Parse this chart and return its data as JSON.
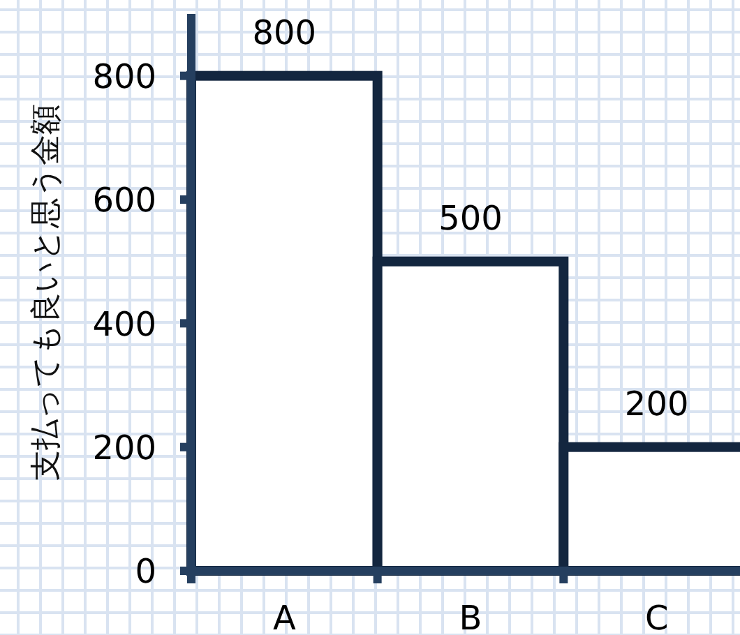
{
  "chart_data": {
    "type": "bar",
    "ylabel": "支払っても良いと思う金額",
    "categories": [
      "A",
      "B",
      "C"
    ],
    "values": [
      800,
      500,
      200
    ],
    "color": "#ffffff",
    "ylim": [
      0,
      900
    ],
    "yticks": [
      0,
      200,
      400,
      600,
      800
    ],
    "data_labels": true
  }
}
